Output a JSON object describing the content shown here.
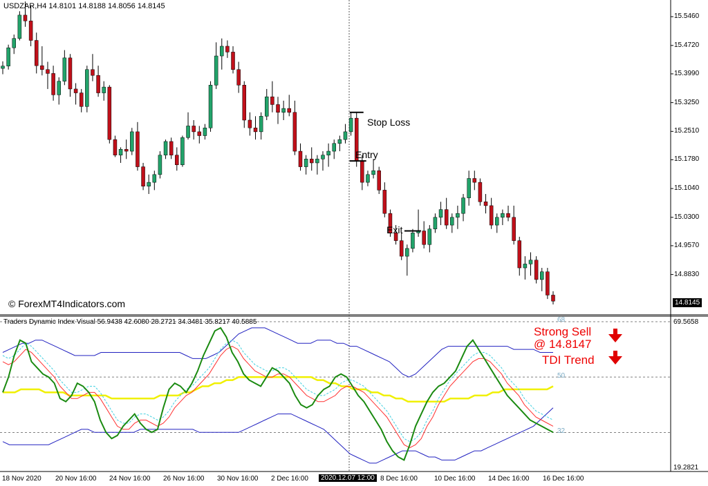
{
  "chart_header": {
    "symbol_info": "USDZAR,H4  14.8101 14.8188 14.8056 14.8145",
    "indicator_info": "Traders Dynamic Index Visual 56.9438 42.6080 28.2721 34.3481 35.8217 40.5885"
  },
  "watermark": "© ForexMT4Indicators.com",
  "current_price": "14.8145",
  "price_axis": [
    "15.5460",
    "15.4720",
    "15.3990",
    "15.3250",
    "15.2510",
    "15.1780",
    "15.1040",
    "15.0300",
    "14.9570",
    "14.8830"
  ],
  "indicator_axis": {
    "top": "69.5658",
    "bottom": "19.2821"
  },
  "indicator_levels": [
    "68",
    "50",
    "32"
  ],
  "time_axis": [
    "18 Nov 2020",
    "20 Nov 16:00",
    "24 Nov 16:00",
    "26 Nov 16:00",
    "30 Nov 16:00",
    "2 Dec 16:00",
    "2020.12.07 12:00",
    "8 Dec 16:00",
    "10 Dec 16:00",
    "14 Dec 16:00",
    "16 Dec 16:00"
  ],
  "annotations": {
    "stop_loss": "Stop Loss",
    "entry": "Entry",
    "exit": "Exit"
  },
  "signal": {
    "line1": "Strong Sell",
    "line2": "@ 14.8147",
    "line3": "TDI Trend"
  },
  "colors": {
    "bull_candle": "#22a36a",
    "bear_candle": "#c0101a",
    "tdi_green": "#1a8a10",
    "tdi_red": "#ff3030",
    "tdi_yellow": "#f0f000",
    "tdi_cyan": "#40d0e0",
    "tdi_blue": "#2020c0",
    "signal_red": "#e00000"
  },
  "chart_data": {
    "type": "candlestick",
    "main_candles_ohlc": [
      [
        15.413,
        15.431,
        15.398,
        15.419
      ],
      [
        15.419,
        15.474,
        15.41,
        15.466
      ],
      [
        15.466,
        15.5,
        15.45,
        15.49
      ],
      [
        15.49,
        15.56,
        15.485,
        15.55
      ],
      [
        15.55,
        15.585,
        15.52,
        15.535
      ],
      [
        15.535,
        15.575,
        15.47,
        15.485
      ],
      [
        15.485,
        15.505,
        15.4,
        15.42
      ],
      [
        15.42,
        15.47,
        15.395,
        15.41
      ],
      [
        15.41,
        15.43,
        15.36,
        15.4
      ],
      [
        15.4,
        15.42,
        15.33,
        15.345
      ],
      [
        15.345,
        15.39,
        15.32,
        15.38
      ],
      [
        15.38,
        15.46,
        15.37,
        15.44
      ],
      [
        15.44,
        15.45,
        15.34,
        15.36
      ],
      [
        15.36,
        15.375,
        15.32,
        15.35
      ],
      [
        15.35,
        15.36,
        15.3,
        15.315
      ],
      [
        15.315,
        15.42,
        15.3,
        15.41
      ],
      [
        15.41,
        15.45,
        15.38,
        15.395
      ],
      [
        15.395,
        15.42,
        15.34,
        15.35
      ],
      [
        15.35,
        15.38,
        15.33,
        15.365
      ],
      [
        15.365,
        15.37,
        15.22,
        15.23
      ],
      [
        15.23,
        15.24,
        15.185,
        15.19
      ],
      [
        15.19,
        15.21,
        15.17,
        15.205
      ],
      [
        15.205,
        15.23,
        15.18,
        15.2
      ],
      [
        15.2,
        15.26,
        15.19,
        15.25
      ],
      [
        15.25,
        15.275,
        15.15,
        15.16
      ],
      [
        15.16,
        15.17,
        15.1,
        15.11
      ],
      [
        15.11,
        15.14,
        15.09,
        15.12
      ],
      [
        15.12,
        15.15,
        15.1,
        15.14
      ],
      [
        15.14,
        15.2,
        15.13,
        15.19
      ],
      [
        15.19,
        15.23,
        15.18,
        15.225
      ],
      [
        15.225,
        15.235,
        15.18,
        15.19
      ],
      [
        15.19,
        15.21,
        15.15,
        15.165
      ],
      [
        15.165,
        15.24,
        15.16,
        15.235
      ],
      [
        15.235,
        15.3,
        15.23,
        15.265
      ],
      [
        15.265,
        15.28,
        15.23,
        15.25
      ],
      [
        15.25,
        15.265,
        15.22,
        15.24
      ],
      [
        15.24,
        15.27,
        15.23,
        15.26
      ],
      [
        15.26,
        15.38,
        15.25,
        15.37
      ],
      [
        15.37,
        15.48,
        15.36,
        15.445
      ],
      [
        15.445,
        15.49,
        15.41,
        15.47
      ],
      [
        15.47,
        15.485,
        15.44,
        15.455
      ],
      [
        15.455,
        15.47,
        15.4,
        15.41
      ],
      [
        15.41,
        15.43,
        15.35,
        15.37
      ],
      [
        15.37,
        15.38,
        15.26,
        15.28
      ],
      [
        15.28,
        15.3,
        15.24,
        15.26
      ],
      [
        15.26,
        15.29,
        15.23,
        15.25
      ],
      [
        15.25,
        15.3,
        15.23,
        15.29
      ],
      [
        15.29,
        15.36,
        15.28,
        15.34
      ],
      [
        15.34,
        15.38,
        15.3,
        15.32
      ],
      [
        15.32,
        15.34,
        15.27,
        15.3
      ],
      [
        15.3,
        15.33,
        15.28,
        15.31
      ],
      [
        15.31,
        15.345,
        15.29,
        15.3
      ],
      [
        15.3,
        15.33,
        15.19,
        15.2
      ],
      [
        15.2,
        15.22,
        15.15,
        15.16
      ],
      [
        15.16,
        15.19,
        15.14,
        15.18
      ],
      [
        15.18,
        15.21,
        15.15,
        15.17
      ],
      [
        15.17,
        15.19,
        15.14,
        15.18
      ],
      [
        15.18,
        15.2,
        15.15,
        15.19
      ],
      [
        15.19,
        15.22,
        15.16,
        15.2
      ],
      [
        15.2,
        15.23,
        15.18,
        15.22
      ],
      [
        15.22,
        15.24,
        15.2,
        15.23
      ],
      [
        15.23,
        15.27,
        15.22,
        15.25
      ],
      [
        15.25,
        15.3,
        15.24,
        15.285
      ],
      [
        15.285,
        15.3,
        15.16,
        15.175
      ],
      [
        15.175,
        15.19,
        15.1,
        15.12
      ],
      [
        15.12,
        15.15,
        15.11,
        15.14
      ],
      [
        15.14,
        15.18,
        15.13,
        15.15
      ],
      [
        15.15,
        15.16,
        15.09,
        15.1
      ],
      [
        15.1,
        15.12,
        15.03,
        15.04
      ],
      [
        15.04,
        15.05,
        14.98,
        14.99
      ],
      [
        14.99,
        15.01,
        14.96,
        14.97
      ],
      [
        14.97,
        14.99,
        14.92,
        14.93
      ],
      [
        14.93,
        14.96,
        14.88,
        14.95
      ],
      [
        14.95,
        15.0,
        14.94,
        14.99
      ],
      [
        14.99,
        15.05,
        14.98,
        14.995
      ],
      [
        14.995,
        15.02,
        14.95,
        14.96
      ],
      [
        14.96,
        15.01,
        14.94,
        15.0
      ],
      [
        15.0,
        15.04,
        14.99,
        15.03
      ],
      [
        15.03,
        15.07,
        15.01,
        15.05
      ],
      [
        15.05,
        15.08,
        15.0,
        15.01
      ],
      [
        15.01,
        15.04,
        14.99,
        15.03
      ],
      [
        15.03,
        15.06,
        15.0,
        15.04
      ],
      [
        15.04,
        15.09,
        15.02,
        15.08
      ],
      [
        15.08,
        15.15,
        15.06,
        15.13
      ],
      [
        15.13,
        15.15,
        15.1,
        15.12
      ],
      [
        15.12,
        15.13,
        15.06,
        15.07
      ],
      [
        15.07,
        15.09,
        15.04,
        15.06
      ],
      [
        15.06,
        15.08,
        15.0,
        15.01
      ],
      [
        15.01,
        15.04,
        14.99,
        15.03
      ],
      [
        15.03,
        15.05,
        15.01,
        15.04
      ],
      [
        15.04,
        15.06,
        15.02,
        15.03
      ],
      [
        15.03,
        15.06,
        14.96,
        14.97
      ],
      [
        14.97,
        14.98,
        14.88,
        14.9
      ],
      [
        14.9,
        14.93,
        14.87,
        14.91
      ],
      [
        14.91,
        14.94,
        14.88,
        14.92
      ],
      [
        14.92,
        14.93,
        14.86,
        14.87
      ],
      [
        14.87,
        14.9,
        14.84,
        14.89
      ],
      [
        14.89,
        14.9,
        14.82,
        14.83
      ],
      [
        14.83,
        14.84,
        14.806,
        14.8145
      ]
    ],
    "tdi_scale": [
      19.2821,
      69.5658
    ],
    "tdi_levels": [
      68,
      50,
      32
    ],
    "tdi_rsi_price_line_green": [
      45,
      50,
      57,
      62,
      61,
      55,
      53,
      51,
      50,
      48,
      43,
      42,
      44,
      48,
      47,
      45,
      42,
      36,
      32,
      30,
      31,
      34,
      36,
      38,
      35,
      33,
      32,
      33,
      40,
      46,
      48,
      47,
      45,
      48,
      52,
      57,
      61,
      65,
      66,
      63,
      58,
      55,
      51,
      49,
      48,
      47,
      50,
      53,
      52,
      50,
      48,
      44,
      41,
      40,
      41,
      44,
      46,
      47,
      50,
      51,
      50,
      47,
      44,
      42,
      39,
      36,
      33,
      29,
      26,
      24,
      23,
      28,
      34,
      38,
      42,
      45,
      47,
      48,
      50,
      52,
      56,
      60,
      62,
      59,
      56,
      53,
      50,
      47,
      44,
      42,
      40,
      38,
      36,
      35,
      34,
      33,
      32
    ],
    "tdi_trade_signal_red": [
      55,
      54,
      55,
      57,
      59,
      58,
      56,
      54,
      52,
      50,
      47,
      45,
      43,
      43,
      44,
      45,
      45,
      43,
      40,
      37,
      34,
      33,
      33,
      35,
      36,
      36,
      35,
      34,
      35,
      37,
      40,
      42,
      44,
      45,
      47,
      49,
      51,
      54,
      57,
      59,
      60,
      59,
      56,
      54,
      52,
      51,
      50,
      50,
      51,
      51,
      50,
      48,
      46,
      44,
      43,
      42,
      42,
      43,
      44,
      46,
      47,
      47,
      46,
      45,
      43,
      41,
      39,
      37,
      34,
      31,
      28,
      27,
      28,
      30,
      34,
      37,
      41,
      44,
      47,
      49,
      51,
      53,
      55,
      56,
      56,
      55,
      53,
      51,
      48,
      46,
      44,
      41,
      39,
      37,
      36,
      35,
      34
    ],
    "tdi_market_base_yellow": [
      45,
      45,
      45,
      46,
      46,
      46,
      46,
      45,
      45,
      45,
      45,
      44,
      44,
      44,
      44,
      44,
      44,
      44,
      43,
      43,
      43,
      43,
      43,
      43,
      43,
      43,
      44,
      44,
      44,
      44,
      45,
      45,
      46,
      47,
      47,
      48,
      48,
      49,
      49,
      50,
      50,
      50,
      50,
      50,
      50,
      50,
      50,
      50,
      50,
      50,
      50,
      50,
      49,
      49,
      48,
      48,
      47,
      47,
      46,
      46,
      46,
      45,
      45,
      44,
      44,
      43,
      43,
      42,
      42,
      42,
      42,
      42,
      42,
      42,
      43,
      43,
      43,
      43,
      44,
      44,
      44,
      45,
      45,
      46,
      46,
      46,
      46,
      46,
      46,
      46,
      46,
      47
    ],
    "tdi_volatility_band_upper": [
      58,
      59,
      60,
      61,
      61,
      62,
      62,
      61,
      60,
      59,
      58,
      57,
      57,
      57,
      57,
      58,
      58,
      58,
      58,
      58,
      58,
      58,
      58,
      58,
      58,
      58,
      58,
      58,
      57,
      56,
      56,
      56,
      57,
      58,
      60,
      62,
      64,
      65,
      66,
      66,
      66,
      65,
      64,
      63,
      62,
      61,
      61,
      61,
      62,
      62,
      62,
      61,
      61,
      60,
      60,
      59,
      58,
      57,
      56,
      55,
      53,
      51,
      50,
      51,
      53,
      55,
      57,
      59,
      60,
      60,
      60,
      60,
      60,
      60,
      60,
      60,
      60,
      60,
      59,
      59,
      59,
      59,
      58,
      58,
      58
    ],
    "tdi_volatility_band_lower": [
      29,
      28,
      28,
      28,
      28,
      28,
      28,
      28,
      29,
      30,
      31,
      32,
      33,
      33,
      32,
      32,
      32,
      32,
      32,
      32,
      32,
      33,
      33,
      33,
      33,
      33,
      33,
      33,
      33,
      33,
      32,
      32,
      32,
      32,
      32,
      32,
      32,
      33,
      34,
      35,
      36,
      37,
      38,
      38,
      38,
      37,
      36,
      35,
      34,
      33,
      31,
      29,
      27,
      25,
      24,
      23,
      22,
      22,
      23,
      24,
      25,
      26,
      26,
      26,
      25,
      24,
      24,
      23,
      23,
      23,
      24,
      25,
      26,
      26,
      27,
      28,
      29,
      30,
      31,
      32,
      33,
      34,
      36,
      38,
      40
    ]
  }
}
